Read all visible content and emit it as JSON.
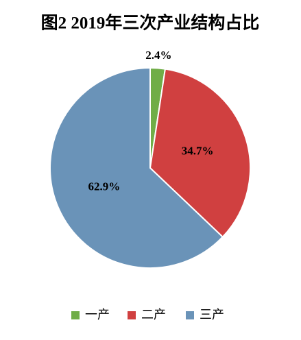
{
  "chart_data": {
    "type": "pie",
    "title": "图2  2019年三次产业结构占比",
    "categories": [
      "一产",
      "二产",
      "三产"
    ],
    "values": [
      2.4,
      34.7,
      62.9
    ],
    "value_labels": [
      "2.4%",
      "34.7%",
      "62.9%"
    ],
    "colors": [
      "#70ad47",
      "#d04040",
      "#6a93b8"
    ],
    "legend": "bottom"
  }
}
